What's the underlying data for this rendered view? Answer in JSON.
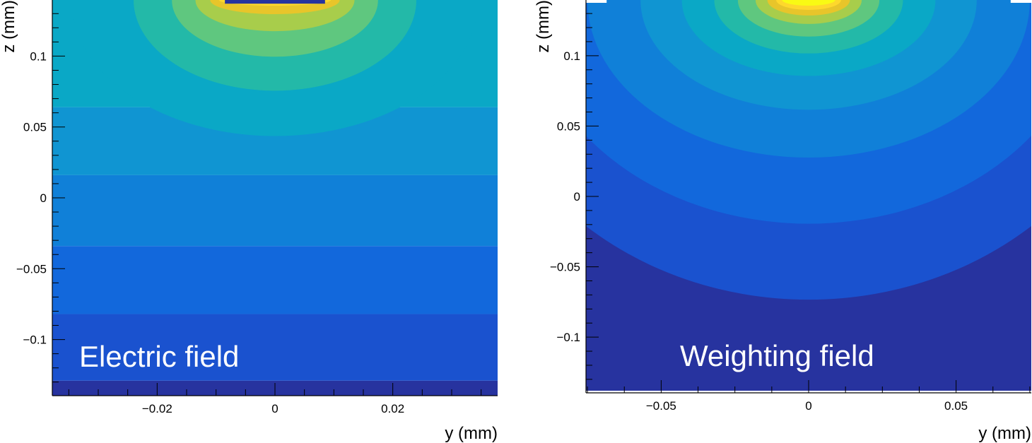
{
  "chart_data": [
    {
      "type": "heatmap",
      "title": "",
      "label": "Electric field",
      "xlabel": "y (mm)",
      "ylabel": "z (mm)",
      "xlim": [
        -0.0378,
        0.0378
      ],
      "ylim": [
        -0.1396,
        0.1396
      ],
      "xticks": [
        {
          "value": -0.02,
          "label": "−0.02"
        },
        {
          "value": 0,
          "label": "0"
        },
        {
          "value": 0.02,
          "label": "0.02"
        }
      ],
      "yticks": [
        {
          "value": -0.1,
          "label": "−0.1"
        },
        {
          "value": -0.05,
          "label": "−0.05"
        },
        {
          "value": 0,
          "label": "0"
        },
        {
          "value": 0.05,
          "label": "0.05"
        },
        {
          "value": 0.1,
          "label": "0.1"
        }
      ],
      "colorscale": [
        "#27339f",
        "#1a52cf",
        "#1268dc",
        "#1080d8",
        "#1095d2",
        "#0aa8c6",
        "#23b9a8",
        "#5fc77f",
        "#a8cd4b",
        "#e8c52a",
        "#fed82c",
        "#f9fa14"
      ],
      "bands": [
        {
          "z_from": -0.1396,
          "z_to": -0.129,
          "level": 0
        },
        {
          "z_from": -0.129,
          "z_to": -0.082,
          "level": 1
        },
        {
          "z_from": -0.082,
          "z_to": -0.034,
          "level": 2
        },
        {
          "z_from": -0.034,
          "z_to": 0.016,
          "level": 3
        },
        {
          "z_from": 0.016,
          "z_to": 0.064,
          "level": 4
        },
        {
          "z_from": 0.064,
          "z_to": 0.1396,
          "level": 5
        }
      ],
      "contours": [
        {
          "z_center": 0.1396,
          "z_depth": 0.096,
          "y_halfwidth": 0.0345,
          "level": 5
        },
        {
          "z_center": 0.1396,
          "z_depth": 0.064,
          "y_halfwidth": 0.024,
          "level": 6
        },
        {
          "z_center": 0.1396,
          "z_depth": 0.04,
          "y_halfwidth": 0.0175,
          "level": 7
        },
        {
          "z_center": 0.1396,
          "z_depth": 0.022,
          "y_halfwidth": 0.0135,
          "level": 8
        },
        {
          "z_center": 0.1396,
          "z_depth": 0.01,
          "y_halfwidth": 0.011,
          "level": 9
        },
        {
          "z_center": 0.1396,
          "z_depth": 0.004,
          "y_halfwidth": 0.0095,
          "level": 10
        }
      ],
      "electrode": {
        "y_from": -0.0085,
        "y_to": 0.0085,
        "z_from": 0.137,
        "z_to": 0.1396,
        "level": 0
      }
    },
    {
      "type": "heatmap",
      "title": "",
      "label": "Weighting field",
      "xlabel": "y (mm)",
      "ylabel": "z (mm)",
      "xlim": [
        -0.0755,
        0.0755
      ],
      "ylim": [
        -0.1396,
        0.1396
      ],
      "xticks": [
        {
          "value": -0.05,
          "label": "−0.05"
        },
        {
          "value": 0,
          "label": "0"
        },
        {
          "value": 0.05,
          "label": "0.05"
        }
      ],
      "yticks": [
        {
          "value": -0.1,
          "label": "−0.1"
        },
        {
          "value": -0.05,
          "label": "−0.05"
        },
        {
          "value": 0,
          "label": "0"
        },
        {
          "value": 0.05,
          "label": "0.05"
        },
        {
          "value": 0.1,
          "label": "0.1"
        }
      ],
      "colorscale": [
        "#27339f",
        "#1a52cf",
        "#1268dc",
        "#1080d8",
        "#1095d2",
        "#0aa8c6",
        "#23b9a8",
        "#5fc77f",
        "#a8cd4b",
        "#e8c52a",
        "#fed82c",
        "#f9fa14"
      ],
      "contours": [
        {
          "z_center": 0.1396,
          "z_depth": 0.213,
          "y_halfwidth": 0.115,
          "level": 1
        },
        {
          "z_center": 0.1396,
          "z_depth": 0.159,
          "y_halfwidth": 0.095,
          "level": 2
        },
        {
          "z_center": 0.1396,
          "z_depth": 0.112,
          "y_halfwidth": 0.075,
          "level": 3
        },
        {
          "z_center": 0.1396,
          "z_depth": 0.078,
          "y_halfwidth": 0.057,
          "level": 4
        },
        {
          "z_center": 0.1396,
          "z_depth": 0.054,
          "y_halfwidth": 0.043,
          "level": 5
        },
        {
          "z_center": 0.1396,
          "z_depth": 0.038,
          "y_halfwidth": 0.032,
          "level": 6
        },
        {
          "z_center": 0.1396,
          "z_depth": 0.026,
          "y_halfwidth": 0.024,
          "level": 7
        },
        {
          "z_center": 0.1396,
          "z_depth": 0.017,
          "y_halfwidth": 0.018,
          "level": 8
        },
        {
          "z_center": 0.1396,
          "z_depth": 0.011,
          "y_halfwidth": 0.014,
          "level": 9
        },
        {
          "z_center": 0.1396,
          "z_depth": 0.007,
          "y_halfwidth": 0.011,
          "level": 10
        },
        {
          "z_center": 0.1396,
          "z_depth": 0.004,
          "y_halfwidth": 0.009,
          "level": 11
        }
      ],
      "background_level": 0,
      "edge_marks": [
        {
          "y_from": -0.0755,
          "y_to": -0.0685
        },
        {
          "y_from": 0.0685,
          "y_to": 0.0755
        }
      ]
    }
  ]
}
